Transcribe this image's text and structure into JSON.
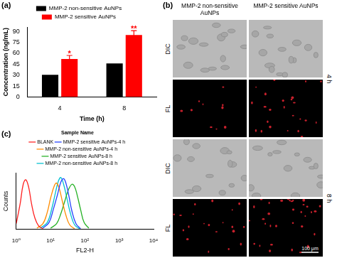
{
  "chart_data": [
    {
      "panel": "(a)",
      "type": "bar",
      "categories": [
        "4",
        "8"
      ],
      "x_label": "Time (h)",
      "y_label": "Concentration (ng/mL)",
      "ylim": [
        0,
        96
      ],
      "yticks": [
        0,
        15,
        30,
        45,
        60,
        75,
        90
      ],
      "grid": false,
      "legend": "top",
      "series": [
        {
          "name": "MMP-2 non-sensitive AuNPs",
          "color": "#000000",
          "values": [
            30.5,
            46
          ]
        },
        {
          "name": "MMP-2 sensitive AuNPs",
          "color": "#ff0000",
          "values": [
            52,
            85
          ],
          "errors": [
            5,
            6
          ],
          "annotations": [
            "*",
            "**"
          ]
        }
      ]
    },
    {
      "panel": "(c)",
      "type": "line",
      "log": "x",
      "x_label": "FL2-H",
      "y_label": "Counts",
      "xlim": [
        1,
        10000
      ],
      "xticks": [
        {
          "value": 1,
          "label": "10⁰"
        },
        {
          "value": 10,
          "label": "10¹"
        },
        {
          "value": 100,
          "label": "10²"
        },
        {
          "value": 1000,
          "label": "10³"
        },
        {
          "value": 10000,
          "label": "10⁴"
        }
      ],
      "ylim": [
        0,
        100
      ],
      "tick_labels": "x",
      "grid": false,
      "legend": "top",
      "legend_title": "Sample Name",
      "series": [
        {
          "name": "BLANK",
          "color": "#ff2020",
          "x": [
            1,
            1.3,
            1.6,
            1.9,
            2.3,
            2.8,
            3.5,
            4.5,
            6
          ],
          "values": [
            10,
            45,
            80,
            88,
            75,
            45,
            20,
            6,
            1
          ]
        },
        {
          "name": "MMP-2 sensitive AuNPs-4 h",
          "color": "#2040ff",
          "x": [
            6,
            9,
            12,
            16,
            20,
            24,
            28,
            34,
            42,
            55,
            75
          ],
          "values": [
            2,
            12,
            35,
            62,
            84,
            90,
            82,
            60,
            32,
            10,
            1
          ]
        },
        {
          "name": "MMP-2 non-sensitive AuNPs-4 h",
          "color": "#ff8c00",
          "x": [
            4,
            6,
            8,
            10,
            13,
            15,
            18,
            22,
            28,
            36,
            50
          ],
          "values": [
            2,
            10,
            30,
            55,
            78,
            82,
            72,
            50,
            25,
            8,
            1
          ]
        },
        {
          "name": "MMP-2 sensitive AuNPs-8 h",
          "color": "#22b022",
          "x": [
            10,
            15,
            20,
            26,
            33,
            42,
            50,
            60,
            75,
            95,
            130
          ],
          "values": [
            2,
            10,
            28,
            50,
            70,
            80,
            76,
            60,
            35,
            12,
            2
          ]
        },
        {
          "name": "MMP-2 non-sensitive AuNPs-8 h",
          "color": "#00c0d0",
          "x": [
            5,
            8,
            11,
            14,
            17,
            20,
            24,
            30,
            38,
            50,
            70
          ],
          "values": [
            2,
            12,
            38,
            66,
            86,
            92,
            80,
            55,
            28,
            8,
            1
          ]
        }
      ]
    }
  ],
  "image_panel": {
    "panel": "(b)",
    "columns": [
      "MMP-2 non-sensitive AuNPs",
      "MMP-2 sensitive AuNPs"
    ],
    "rows": [
      "DIC",
      "FL",
      "DIC",
      "FL"
    ],
    "row_groups": [
      "4 h",
      "8 h"
    ],
    "scale_bar": "100 μm"
  }
}
